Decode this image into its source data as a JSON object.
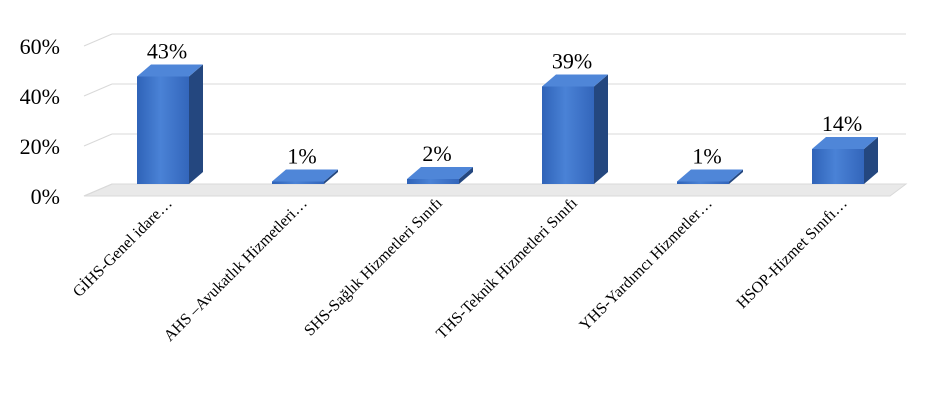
{
  "chart_data": {
    "type": "bar",
    "title": "",
    "xlabel": "",
    "ylabel": "",
    "categories": [
      "GİHS-Genel idare…",
      "AHS –Avukatlık Hizmetleri…",
      "SHS-Sağlık Hizmetleri Sınıfı",
      "THS-Teknik Hizmetleri Sınıfı",
      "YHS-Yardımcı Hizmetler…",
      "HSOP-Hizmet Sınıfı…"
    ],
    "values": [
      43,
      1,
      2,
      39,
      1,
      14
    ],
    "data_labels": [
      "43%",
      "1%",
      "2%",
      "39%",
      "1%",
      "14%"
    ],
    "ylim": [
      0,
      60
    ],
    "yticks": [
      0,
      20,
      40,
      60
    ],
    "ytick_labels": [
      "0%",
      "20%",
      "40%",
      "60%"
    ],
    "style": "3d-column",
    "grid": true,
    "legend": "none",
    "colors": {
      "bar_front": "#3a6fc4",
      "bar_side": "#24477f",
      "bar_top": "#4f86d8",
      "grid": "#d9d9d9",
      "floor": "#e9e9e9"
    }
  }
}
